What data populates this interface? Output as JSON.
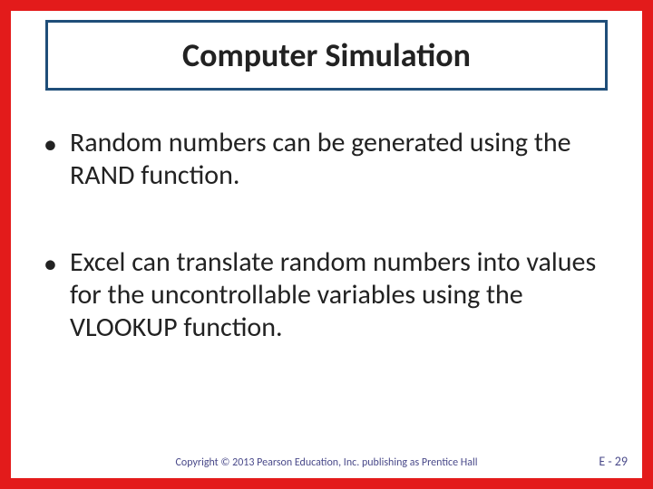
{
  "colors": {
    "border": "#e31b1b",
    "title_border": "#1f4e79"
  },
  "title": "Computer Simulation",
  "bullets": [
    "Random numbers can be generated using the RAND function.",
    "Excel can translate random numbers into values for the uncontrollable variables using the VLOOKUP function."
  ],
  "footer": {
    "copyright": "Copyright © 2013 Pearson Education, Inc. publishing as Prentice Hall",
    "page": "E - 29"
  }
}
